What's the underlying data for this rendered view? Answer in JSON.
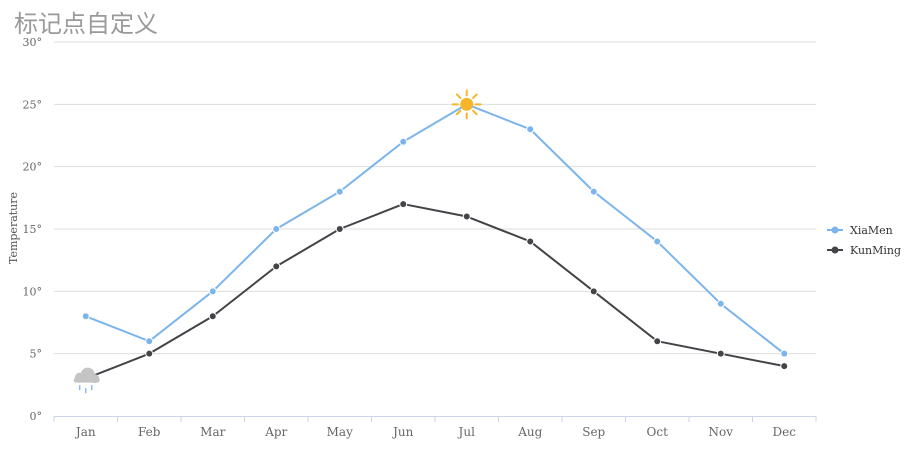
{
  "chart_data": {
    "type": "line",
    "title": "标记点自定义",
    "ylabel": "Temperature",
    "y_tick_suffix": "°",
    "ylim": [
      0,
      30
    ],
    "y_ticks": [
      0,
      5,
      10,
      15,
      20,
      25,
      30
    ],
    "categories": [
      "Jan",
      "Feb",
      "Mar",
      "Apr",
      "May",
      "Jun",
      "Jul",
      "Aug",
      "Sep",
      "Oct",
      "Nov",
      "Dec"
    ],
    "series": [
      {
        "name": "XiaMen",
        "color": "#7cb5ec",
        "values": [
          8,
          6,
          10,
          15,
          18,
          22,
          25,
          23,
          18,
          14,
          9,
          5
        ],
        "special_marker": {
          "index": 6,
          "icon": "sun-icon"
        }
      },
      {
        "name": "KunMing",
        "color": "#434348",
        "values": [
          3,
          5,
          8,
          12,
          15,
          17,
          16,
          14,
          10,
          6,
          5,
          4
        ],
        "special_marker": {
          "index": 0,
          "icon": "rain-cloud-icon"
        }
      }
    ],
    "grid": true,
    "legend_position": "right"
  }
}
